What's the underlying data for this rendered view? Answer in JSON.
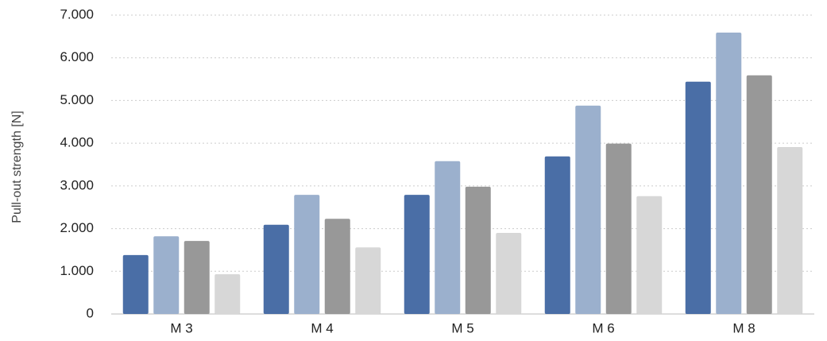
{
  "chart_data": {
    "type": "bar",
    "y_label": "Pull-out strength [N]",
    "categories": [
      "M 3",
      "M 4",
      "M 5",
      "M 6",
      "M 8"
    ],
    "series": [
      {
        "color": "#4a6ea6",
        "values": [
          1380,
          2090,
          2790,
          3690,
          5440
        ]
      },
      {
        "color": "#9bb0cd",
        "values": [
          1820,
          2790,
          3580,
          4880,
          6590
        ]
      },
      {
        "color": "#989898",
        "values": [
          1710,
          2230,
          2980,
          3990,
          5590
        ]
      },
      {
        "color": "#d7d7d7",
        "values": [
          930,
          1560,
          1900,
          2760,
          3910
        ]
      }
    ],
    "ylim": [
      0,
      7000
    ],
    "yticks": [
      0,
      {
        "value": 1000,
        "label": "1.000"
      },
      {
        "value": 2000,
        "label": "2.000"
      },
      {
        "value": 3000,
        "label": "3.000"
      },
      {
        "value": 4000,
        "label": "4.000"
      },
      {
        "value": 5000,
        "label": "5.000"
      },
      {
        "value": 6000,
        "label": "6.000"
      },
      {
        "value": 7000,
        "label": "7.000"
      }
    ],
    "grid": true
  }
}
